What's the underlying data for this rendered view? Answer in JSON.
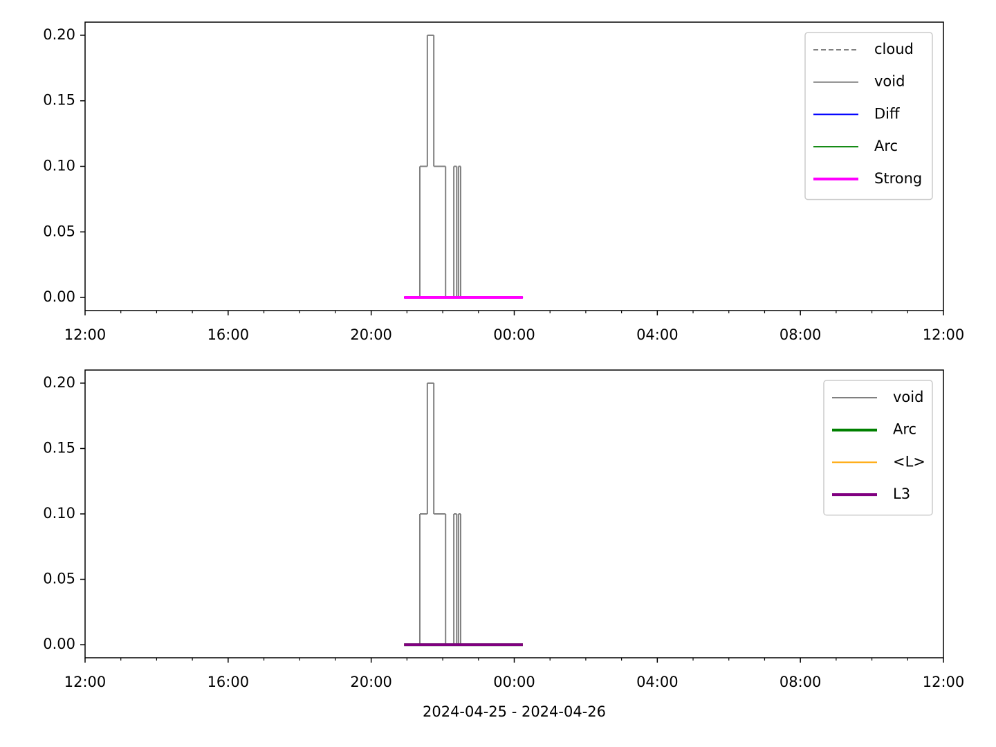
{
  "chart_data": [
    {
      "type": "line",
      "step": "post",
      "xlim": [
        0,
        24
      ],
      "xticks": [
        {
          "value": 0,
          "label": "12:00"
        },
        {
          "value": 4,
          "label": "16:00"
        },
        {
          "value": 8,
          "label": "20:00"
        },
        {
          "value": 12,
          "label": "00:00"
        },
        {
          "value": 16,
          "label": "04:00"
        },
        {
          "value": 20,
          "label": "08:00"
        },
        {
          "value": 24,
          "label": "12:00"
        }
      ],
      "xminorticks": [
        1,
        2,
        3,
        5,
        6,
        7,
        9,
        10,
        11,
        13,
        14,
        15,
        17,
        18,
        19,
        21,
        22,
        23
      ],
      "ylim": [
        -0.01,
        0.21
      ],
      "yticks": [
        {
          "value": 0,
          "label": "0.00"
        },
        {
          "value": 0.05,
          "label": "0.05"
        },
        {
          "value": 0.1,
          "label": "0.10"
        },
        {
          "value": 0.15,
          "label": "0.15"
        },
        {
          "value": 0.2,
          "label": "0.20"
        }
      ],
      "legend": "upper right",
      "series": [
        {
          "name": "cloud",
          "color": "#808080",
          "linestyle": "dashed",
          "linewidth": 2,
          "x": [
            8.92,
            12.24
          ],
          "values": [
            0,
            0
          ]
        },
        {
          "name": "void",
          "color": "#808080",
          "linestyle": "solid",
          "linewidth": 2,
          "x": [
            8.92,
            9.36,
            9.57,
            9.75,
            10.08,
            10.31,
            10.39,
            10.44,
            10.5,
            12.24
          ],
          "values": [
            0,
            0.1,
            0.2,
            0.1,
            0,
            0.1,
            0,
            0.1,
            0,
            0
          ]
        },
        {
          "name": "Diff",
          "color": "#0000ff",
          "linestyle": "solid",
          "linewidth": 2,
          "x": [
            8.92,
            12.24
          ],
          "values": [
            0,
            0
          ]
        },
        {
          "name": "Arc",
          "color": "#008000",
          "linestyle": "solid",
          "linewidth": 2,
          "x": [
            8.92,
            12.24
          ],
          "values": [
            0,
            0
          ]
        },
        {
          "name": "Strong",
          "color": "#ff00ff",
          "linestyle": "solid",
          "linewidth": 4,
          "x": [
            8.92,
            12.24
          ],
          "values": [
            0,
            0
          ]
        }
      ]
    },
    {
      "type": "line",
      "step": "post",
      "xlabel": "2024-04-25 - 2024-04-26",
      "xlim": [
        0,
        24
      ],
      "xticks": [
        {
          "value": 0,
          "label": "12:00"
        },
        {
          "value": 4,
          "label": "16:00"
        },
        {
          "value": 8,
          "label": "20:00"
        },
        {
          "value": 12,
          "label": "00:00"
        },
        {
          "value": 16,
          "label": "04:00"
        },
        {
          "value": 20,
          "label": "08:00"
        },
        {
          "value": 24,
          "label": "12:00"
        }
      ],
      "xminorticks": [
        1,
        2,
        3,
        5,
        6,
        7,
        9,
        10,
        11,
        13,
        14,
        15,
        17,
        18,
        19,
        21,
        22,
        23
      ],
      "ylim": [
        -0.01,
        0.21
      ],
      "yticks": [
        {
          "value": 0,
          "label": "0.00"
        },
        {
          "value": 0.05,
          "label": "0.05"
        },
        {
          "value": 0.1,
          "label": "0.10"
        },
        {
          "value": 0.15,
          "label": "0.15"
        },
        {
          "value": 0.2,
          "label": "0.20"
        }
      ],
      "legend": "upper right",
      "series": [
        {
          "name": "void",
          "color": "#808080",
          "linestyle": "solid",
          "linewidth": 2,
          "x": [
            8.92,
            9.36,
            9.57,
            9.75,
            10.08,
            10.31,
            10.39,
            10.44,
            10.5,
            12.24
          ],
          "values": [
            0,
            0.1,
            0.2,
            0.1,
            0,
            0.1,
            0,
            0.1,
            0,
            0
          ]
        },
        {
          "name": "Arc",
          "color": "#008000",
          "linestyle": "solid",
          "linewidth": 4,
          "x": [
            8.92,
            12.24
          ],
          "values": [
            0,
            0
          ]
        },
        {
          "name": "<L>",
          "color": "#ffa500",
          "linestyle": "solid",
          "linewidth": 2,
          "x": [
            8.92,
            12.24
          ],
          "values": [
            0,
            0
          ]
        },
        {
          "name": "L3",
          "color": "#800080",
          "linestyle": "solid",
          "linewidth": 4,
          "x": [
            8.92,
            12.24
          ],
          "values": [
            0,
            0
          ]
        }
      ]
    }
  ]
}
